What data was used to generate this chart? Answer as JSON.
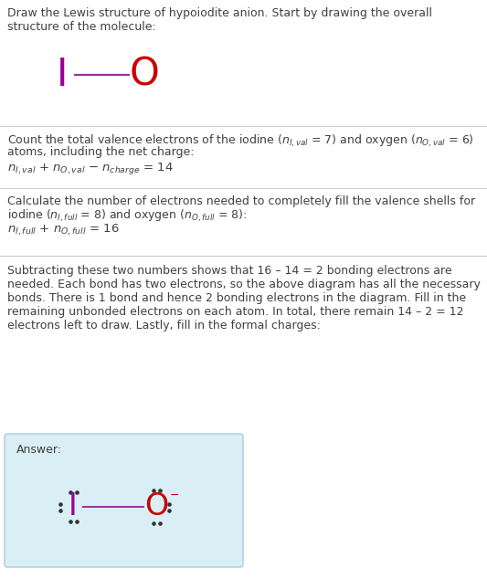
{
  "title_text": "Draw the Lewis structure of hypoiodite anion. Start by drawing the overall\nstructure of the molecule:",
  "section1_line1": "Count the total valence electrons of the iodine (",
  "section1_line1b": ") and oxygen (",
  "section1_line2": "atoms, including the net charge:",
  "section2_line1": "Calculate the number of electrons needed to completely fill the valence shells for",
  "section2_line2": "iodine (",
  "section2_line2b": ") and oxygen (",
  "section2_line2c": "):",
  "section3_text": "Subtracting these two numbers shows that 16 – 14 = 2 bonding electrons are\nneeded. Each bond has two electrons, so the above diagram has all the necessary\nbonds. There is 1 bond and hence 2 bonding electrons in the diagram. Fill in the\nremaining unbonded electrons on each atom. In total, there remain 14 – 2 = 12\nelectrons left to draw. Lastly, fill in the formal charges:",
  "answer_label": "Answer:",
  "iodine_color": "#990099",
  "oxygen_color": "#cc0000",
  "bond_color": "#993399",
  "answer_bg": "#daeef5",
  "answer_border": "#aaccdd",
  "text_color": "#404040",
  "bg_color": "#ffffff",
  "div_color": "#cccccc",
  "dot_color": "#333333"
}
